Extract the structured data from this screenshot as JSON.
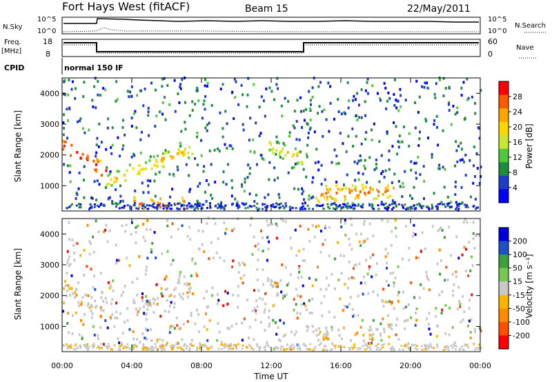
{
  "header": {
    "station": "Fort Hays West (fitACF)",
    "beam": "Beam 15",
    "date": "22/May/2011"
  },
  "strips": {
    "nsky": {
      "label": "N.Sky",
      "tick_top": "10^5",
      "tick_bottom": "10^0",
      "right_label": "N.Search",
      "right_tick_top": "10^5",
      "right_tick_bottom": "10^0"
    },
    "freq": {
      "label_line1": "Freq.",
      "label_line2": "[MHz]",
      "tick_top": "18",
      "tick_bottom": "8",
      "right_label": "Nave",
      "right_tick_top": "60",
      "right_tick_bottom": "0"
    },
    "cpid": {
      "label": "CPID",
      "mode": "normal 150 IF"
    }
  },
  "colors": {
    "power": [
      "#0000ff",
      "#1e3cc8",
      "#1e8c3c",
      "#50c83c",
      "#c8e632",
      "#ffd700",
      "#ffa500",
      "#ff5a00",
      "#ff0000"
    ],
    "velocity": [
      "#0000dc",
      "#1e50c8",
      "#3ca03c",
      "#78c850",
      "#c8c8c8",
      "#ffb400",
      "#ff8c00",
      "#ff5000",
      "#ff0000"
    ]
  },
  "chart_data": [
    {
      "type": "heatmap",
      "name": "power",
      "ylabel": "Slant Range [km]",
      "xlabel": "",
      "x_ticks": [
        "00:00",
        "04:00",
        "08:00",
        "12:00",
        "16:00",
        "20:00",
        "00:00"
      ],
      "x_range_hours": [
        0,
        24
      ],
      "y_ticks": [
        "1000",
        "2000",
        "3000",
        "4000"
      ],
      "y_range_km": [
        180,
        4500
      ],
      "colorbar_label": "Power [dB]",
      "colorbar_ticks": [
        "4",
        "8",
        "12",
        "16",
        "20",
        "24",
        "28"
      ],
      "features": [
        {
          "start_h": 0.0,
          "end_h": 2.5,
          "start_km": 2300,
          "end_km": 1400,
          "level": 0.9
        },
        {
          "start_h": 2.5,
          "end_h": 7.5,
          "start_km": 1100,
          "end_km": 2200,
          "level": 0.6
        },
        {
          "start_h": 11.8,
          "end_h": 14.0,
          "start_km": 2300,
          "end_km": 1800,
          "level": 0.55
        },
        {
          "start_h": 14.5,
          "end_h": 19.0,
          "start_km": 700,
          "end_km": 800,
          "level": 0.75
        },
        {
          "start_h": 4.0,
          "end_h": 7.0,
          "start_km": 350,
          "end_km": 350,
          "level": 0.8
        }
      ]
    },
    {
      "type": "heatmap",
      "name": "velocity",
      "ylabel": "Slant Range [km]",
      "xlabel": "Time UT",
      "x_ticks": [
        "00:00",
        "04:00",
        "08:00",
        "12:00",
        "16:00",
        "20:00",
        "00:00"
      ],
      "x_range_hours": [
        0,
        24
      ],
      "y_ticks": [
        "1000",
        "2000",
        "3000",
        "4000"
      ],
      "y_range_km": [
        180,
        4500
      ],
      "colorbar_label": "Velocity [m s⁻¹]",
      "colorbar_ticks": [
        "200",
        "100",
        "50",
        "15",
        "-15",
        "-50",
        "-100",
        "-200"
      ]
    }
  ]
}
